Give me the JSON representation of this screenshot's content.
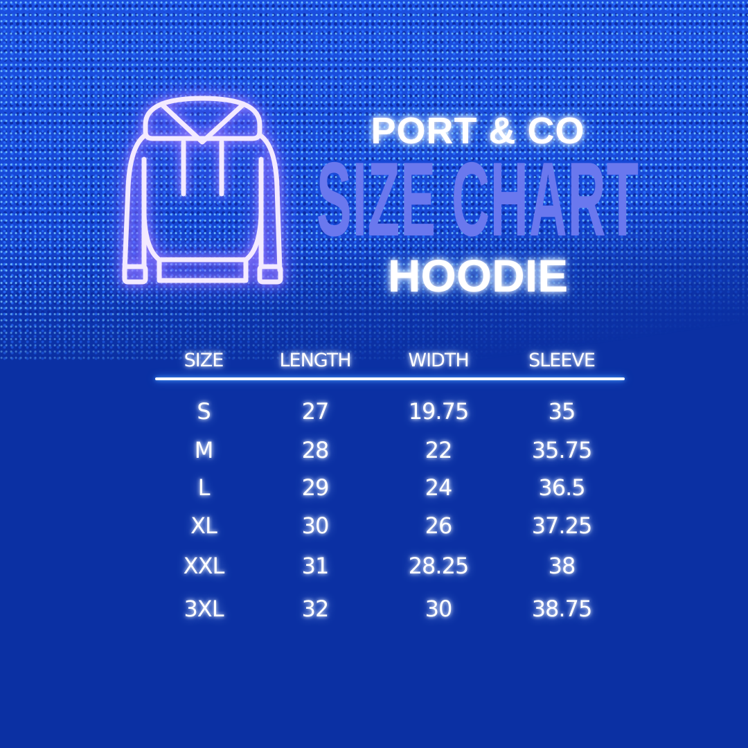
{
  "brand": "PORT & CO",
  "title": "SIZE CHART",
  "product": "HOODIE",
  "icon": "hoodie-icon",
  "colors": {
    "background": "#0b30a3",
    "title_accent": "#6a78ee",
    "glow": "#ffffff"
  },
  "table": {
    "headers": [
      "SIZE",
      "LENGTH",
      "WIDTH",
      "SLEEVE"
    ],
    "rows": [
      [
        "S",
        "27",
        "19.75",
        "35"
      ],
      [
        "M",
        "28",
        "22",
        "35.75"
      ],
      [
        "L",
        "29",
        "24",
        "36.5"
      ],
      [
        "XL",
        "30",
        "26",
        "37.25"
      ],
      [
        "XXL",
        "31",
        "28.25",
        "38"
      ],
      [
        "3XL",
        "32",
        "30",
        "38.75"
      ]
    ]
  }
}
